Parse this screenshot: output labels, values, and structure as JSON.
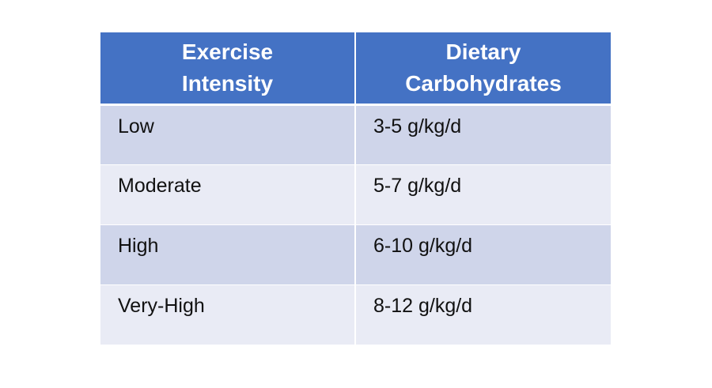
{
  "table": {
    "headers": [
      {
        "line1": "Exercise",
        "line2": "Intensity"
      },
      {
        "line1": "Dietary",
        "line2": "Carbohydrates"
      }
    ],
    "rows": [
      {
        "intensity": "Low",
        "carbs": "3-5 g/kg/d"
      },
      {
        "intensity": "Moderate",
        "carbs": "5-7 g/kg/d"
      },
      {
        "intensity": "High",
        "carbs": "6-10 g/kg/d"
      },
      {
        "intensity": "Very-High",
        "carbs": "8-12 g/kg/d"
      }
    ],
    "colors": {
      "header_bg": "#4472c4",
      "header_text": "#ffffff",
      "row_odd_bg": "#cfd5ea",
      "row_even_bg": "#e9ebf5"
    }
  }
}
